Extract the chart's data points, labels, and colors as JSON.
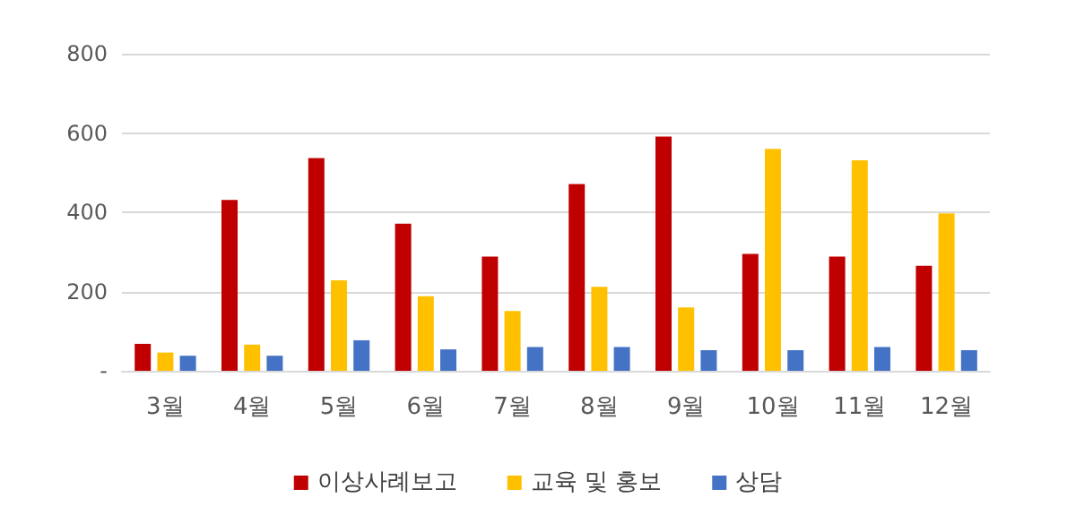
{
  "chart_data": {
    "type": "bar",
    "categories": [
      "3월",
      "4월",
      "5월",
      "6월",
      "7월",
      "8월",
      "9월",
      "10월",
      "11월",
      "12월"
    ],
    "series": [
      {
        "name": "이상사례보고",
        "color": "#c00000",
        "values": [
          68,
          431,
          537,
          371,
          288,
          471,
          591,
          295,
          288,
          265
        ]
      },
      {
        "name": "교육 및 홍보",
        "color": "#ffc000",
        "values": [
          46,
          66,
          228,
          188,
          151,
          212,
          160,
          560,
          531,
          397
        ]
      },
      {
        "name": "상담",
        "color": "#4472c4",
        "values": [
          38,
          38,
          77,
          54,
          60,
          60,
          52,
          52,
          60,
          52
        ]
      }
    ],
    "ylim": [
      0,
      800
    ],
    "yticks": [
      {
        "value": 0,
        "label": "-"
      },
      200,
      400,
      600,
      800
    ],
    "grid": "y",
    "legend": "bottom"
  }
}
